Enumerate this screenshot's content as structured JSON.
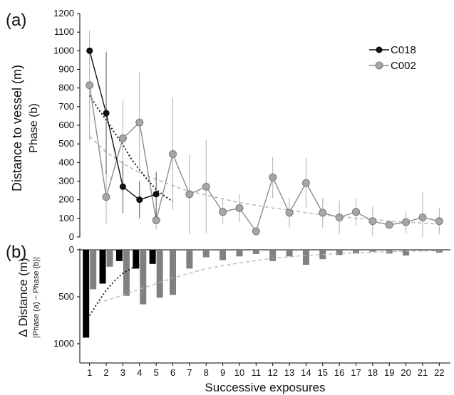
{
  "chart_data": [
    {
      "type": "line",
      "panel_label": "(a)",
      "ylabel": "Distance to vessel (m)",
      "ylabel_sub": "Phase (b)",
      "xlim": [
        0.5,
        22.5
      ],
      "ylim": [
        0,
        1200
      ],
      "yticks": [
        0,
        100,
        200,
        300,
        400,
        500,
        600,
        700,
        800,
        900,
        1000,
        1100,
        1200
      ],
      "legend_position": "top-right",
      "series": [
        {
          "name": "C018",
          "color": "#111111",
          "x": [
            1,
            2,
            3,
            4,
            5
          ],
          "values": [
            1000,
            665,
            270,
            200,
            230
          ],
          "err": [
            0,
            330,
            140,
            100,
            120
          ]
        },
        {
          "name": "C002",
          "color": "#8c8c8c",
          "x": [
            1,
            2,
            3,
            4,
            5,
            6,
            7,
            8,
            9,
            10,
            11,
            12,
            13,
            14,
            15,
            16,
            17,
            18,
            19,
            20,
            21,
            22
          ],
          "values": [
            815,
            215,
            530,
            615,
            90,
            445,
            230,
            270,
            135,
            155,
            30,
            320,
            130,
            290,
            130,
            105,
            135,
            85,
            65,
            80,
            105,
            85
          ],
          "err": [
            295,
            145,
            205,
            270,
            50,
            300,
            215,
            250,
            65,
            75,
            0,
            110,
            80,
            135,
            80,
            90,
            75,
            80,
            0,
            60,
            135,
            70
          ]
        }
      ],
      "trendlines": [
        {
          "series": "C018",
          "style": "dotted",
          "color": "#111111",
          "x": [
            1,
            1.5,
            2,
            2.5,
            3,
            3.5,
            4,
            4.5,
            5,
            5.5,
            6
          ],
          "values": [
            760,
            690,
            630,
            560,
            495,
            420,
            360,
            305,
            255,
            220,
            190
          ]
        },
        {
          "series": "C002",
          "style": "dashed",
          "color": "#b5b5b5",
          "x": [
            1,
            2,
            3,
            4,
            5,
            6,
            7,
            8,
            9,
            10,
            11,
            12,
            13,
            14,
            15,
            16,
            17,
            18,
            19,
            20,
            21,
            22
          ],
          "values": [
            540,
            455,
            395,
            345,
            310,
            275,
            245,
            225,
            205,
            185,
            170,
            155,
            145,
            130,
            120,
            110,
            100,
            95,
            85,
            80,
            75,
            68
          ]
        }
      ]
    },
    {
      "type": "bar",
      "panel_label": "(b)",
      "ylabel": "Δ Distance (m)",
      "ylabel_sub": "|Phase (a) − Phase (b)|",
      "xlabel": "Successive exposures",
      "categories": [
        "1",
        "2",
        "3",
        "4",
        "5",
        "6",
        "7",
        "8",
        "9",
        "10",
        "11",
        "12",
        "13",
        "14",
        "15",
        "16",
        "17",
        "18",
        "19",
        "20",
        "21",
        "22"
      ],
      "ylim": [
        0,
        1000
      ],
      "y_inverted": true,
      "yticks": [
        0,
        500,
        1000
      ],
      "series": [
        {
          "name": "C018",
          "color": "#000000",
          "values": [
            935,
            360,
            120,
            200,
            150,
            null,
            null,
            null,
            null,
            null,
            null,
            null,
            null,
            null,
            null,
            null,
            null,
            null,
            null,
            null,
            null,
            null
          ]
        },
        {
          "name": "C002",
          "color": "#808080",
          "values": [
            420,
            180,
            490,
            580,
            510,
            480,
            200,
            80,
            110,
            70,
            45,
            120,
            70,
            160,
            100,
            55,
            40,
            20,
            40,
            60,
            10,
            30
          ]
        }
      ],
      "trendlines": [
        {
          "series": "C018",
          "style": "dotted",
          "color": "#111111",
          "x": [
            1,
            1.5,
            2,
            2.5,
            3,
            3.5,
            4
          ],
          "values": [
            700,
            560,
            430,
            330,
            250,
            200,
            160
          ]
        },
        {
          "series": "C002",
          "style": "dashed",
          "color": "#b5b5b5",
          "x": [
            1.5,
            2,
            3,
            4,
            5,
            6,
            7,
            8,
            10,
            12,
            14,
            16,
            18,
            20,
            22
          ],
          "values": [
            570,
            540,
            480,
            420,
            360,
            300,
            250,
            200,
            140,
            90,
            60,
            40,
            25,
            15,
            10
          ]
        }
      ]
    }
  ]
}
